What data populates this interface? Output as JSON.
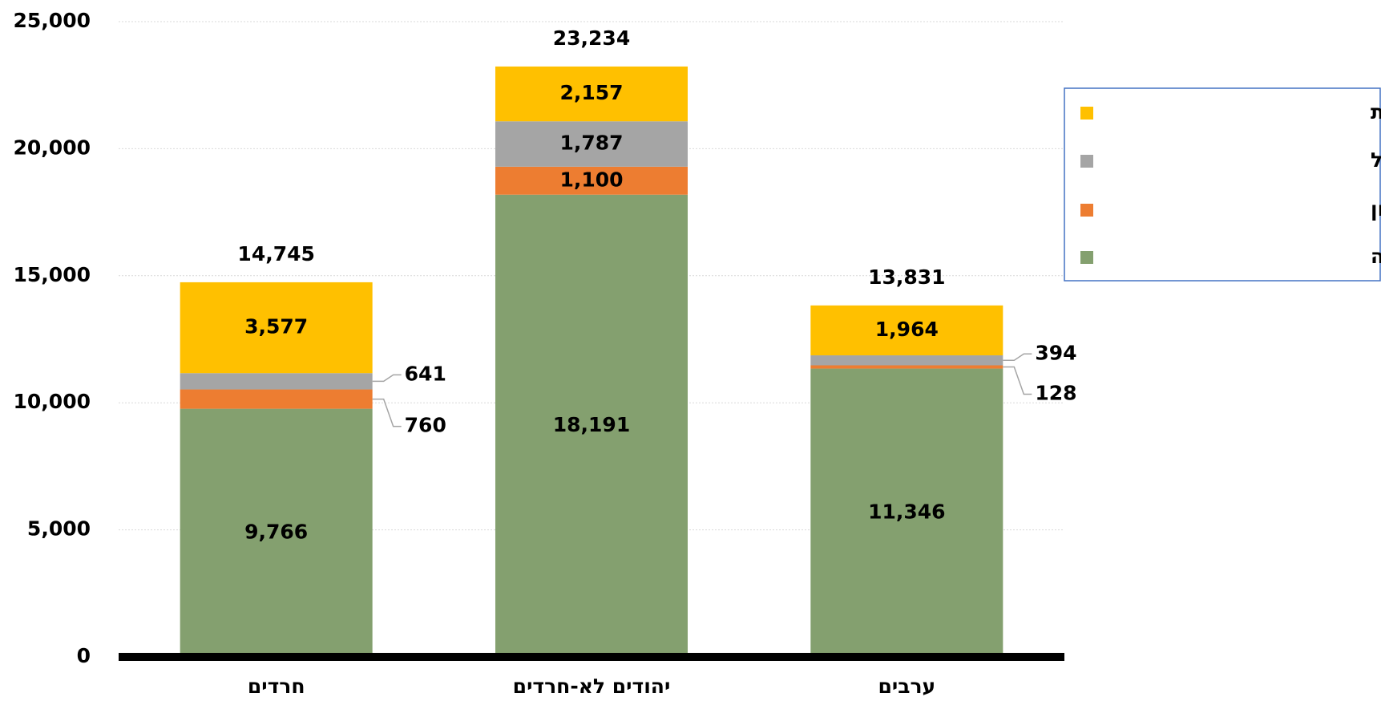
{
  "chart_data": {
    "type": "stacked_bar",
    "categories": [
      "חרדים",
      "יהודים לא-חרדים",
      "ערבים"
    ],
    "series": [
      {
        "name": "הכנסה מעבודה",
        "color": "#84a06f",
        "values": [
          9766,
          18191,
          11346
        ],
        "value_labels": [
          "9,766",
          "18,191",
          "11,346"
        ]
      },
      {
        "name": "הכנסה מהון",
        "color": "#ed7d31",
        "values": [
          760,
          1100,
          128
        ],
        "value_labels": [
          "760",
          "1,100",
          "128"
        ]
      },
      {
        "name": "הכנסה מפנסיות וקופות גמל",
        "color": "#a5a5a5",
        "values": [
          641,
          1787,
          394
        ],
        "value_labels": [
          "641",
          "1,787",
          "394"
        ]
      },
      {
        "name": "הכנסה מקיצבאות ותמיכות",
        "color": "#ffc000",
        "values": [
          3577,
          2157,
          1964
        ],
        "value_labels": [
          "3,577",
          "2,157",
          "1,964"
        ]
      }
    ],
    "totals": [
      14745,
      23234,
      13831
    ],
    "totals_labels": [
      "14,745",
      "23,234",
      "13,831"
    ],
    "ylim": [
      0,
      25000
    ],
    "yticks": [
      0,
      {
        "value": 5000,
        "label": "5,000"
      },
      {
        "value": 10000,
        "label": "10,000"
      },
      {
        "value": 15000,
        "label": "15,000"
      },
      {
        "value": 20000,
        "label": "20,000"
      },
      {
        "value": 25000,
        "label": "25,000"
      }
    ],
    "grid": true,
    "legend": "right"
  }
}
